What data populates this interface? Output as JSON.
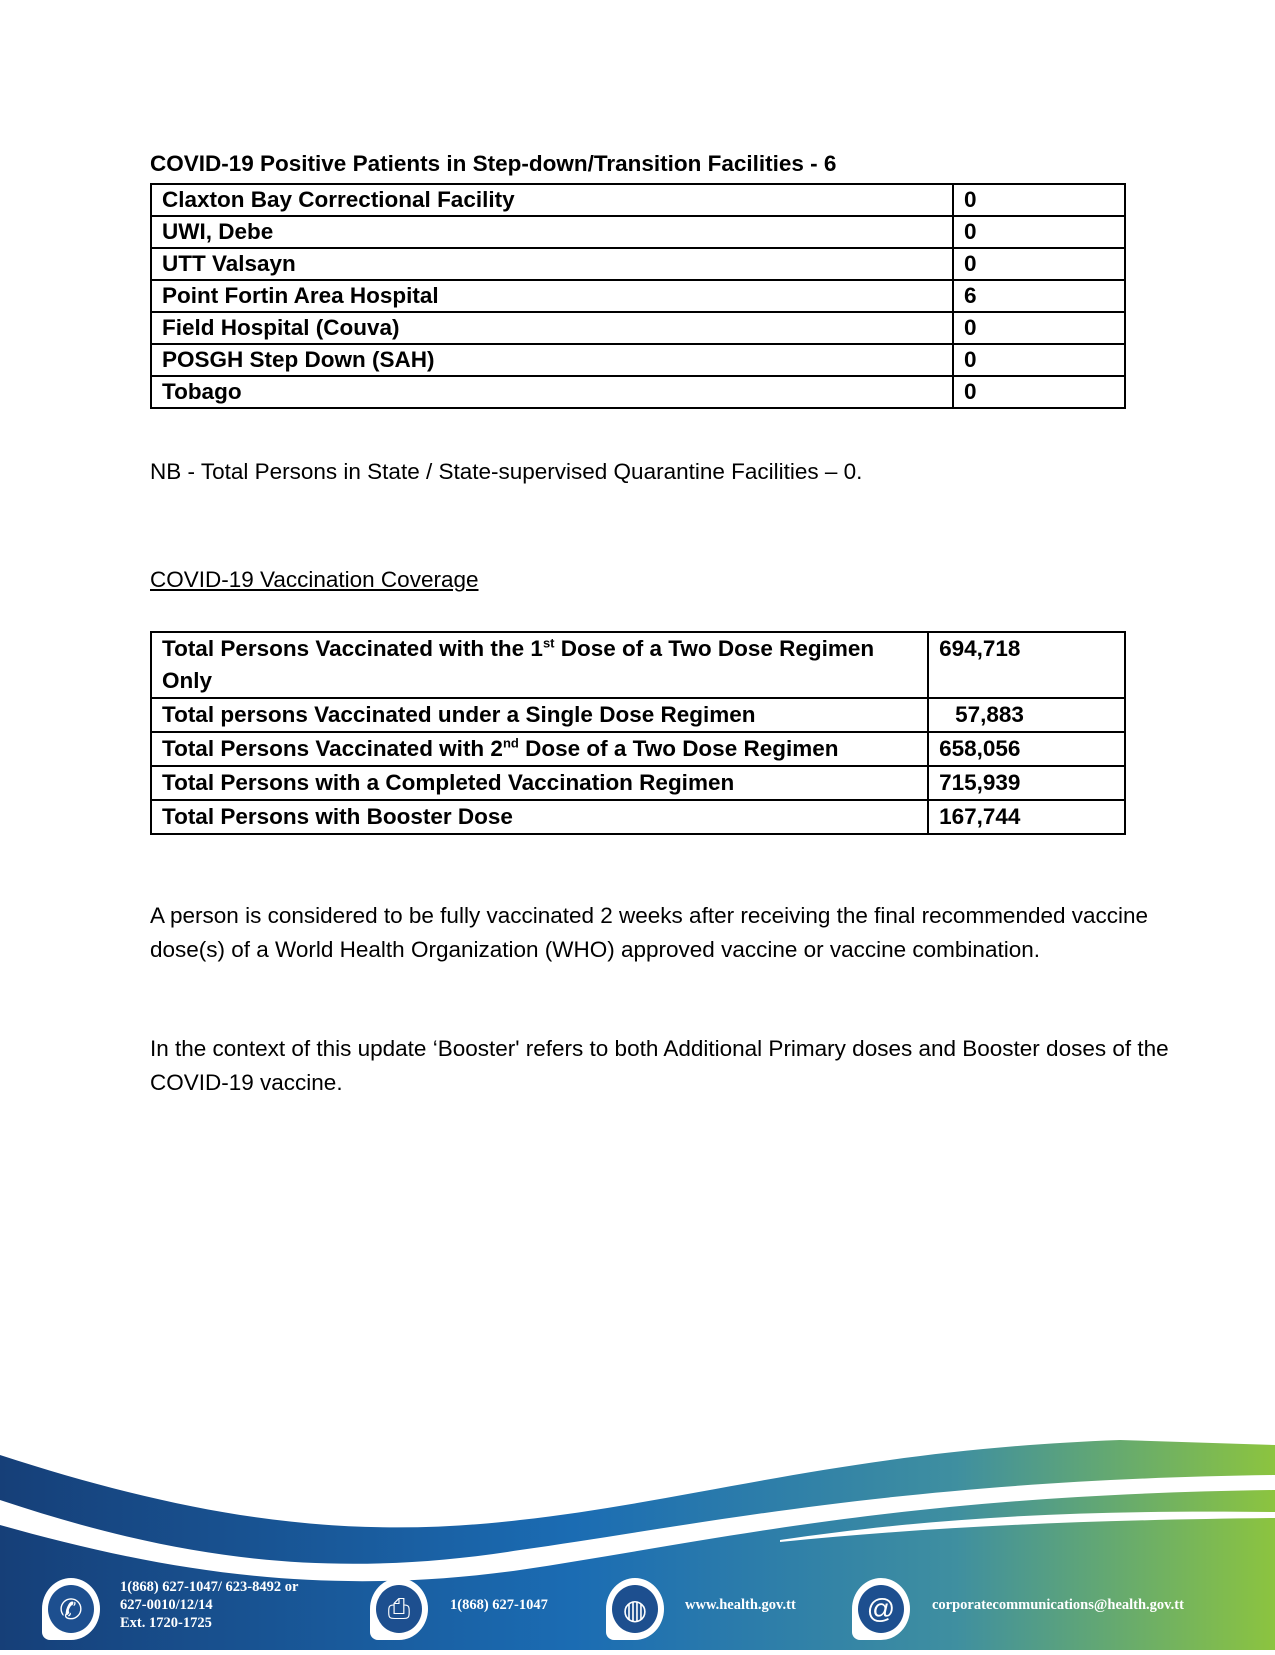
{
  "stepdown": {
    "title": "COVID-19 Positive Patients in Step-down/Transition Facilities - 6",
    "rows": [
      {
        "facility": "Claxton Bay Correctional Facility",
        "count": "0"
      },
      {
        "facility": "UWI, Debe",
        "count": "0"
      },
      {
        "facility": "UTT Valsayn",
        "count": "0"
      },
      {
        "facility": "Point Fortin Area Hospital",
        "count": "6"
      },
      {
        "facility": "Field Hospital (Couva)",
        "count": "0"
      },
      {
        "facility": "POSGH Step Down (SAH)",
        "count": "0"
      },
      {
        "facility": "Tobago",
        "count": "0"
      }
    ]
  },
  "nb_note": "NB - Total Persons in State / State-supervised Quarantine Facilities – 0.",
  "vaccination": {
    "heading": "COVID-19 Vaccination Coverage",
    "rows": [
      {
        "label_pre": "Total Persons Vaccinated with the 1",
        "sup": "st",
        "label_post": " Dose of a Two Dose Regimen Only",
        "value": "694,718"
      },
      {
        "label_pre": "Total persons Vaccinated under a Single Dose Regimen",
        "sup": "",
        "label_post": "",
        "value": "57,883"
      },
      {
        "label_pre": "Total Persons Vaccinated with 2",
        "sup": "nd",
        "label_post": " Dose of a Two Dose Regimen",
        "value": "658,056"
      },
      {
        "label_pre": "Total Persons with a Completed Vaccination Regimen",
        "sup": "",
        "label_post": "",
        "value": "715,939"
      },
      {
        "label_pre": "Total Persons with Booster Dose",
        "sup": "",
        "label_post": "",
        "value": "167,744"
      }
    ]
  },
  "paragraphs": [
    "A person is considered to be fully vaccinated 2 weeks after receiving the final recommended vaccine dose(s) of a  World Health Organization (WHO) approved vaccine or vaccine combination.",
    "In the context of this update ‘Booster' refers to both Additional Primary doses and Booster doses of the COVID-19 vaccine."
  ],
  "footer": {
    "phone": [
      "1(868) 627-1047/ 623-8492 or",
      "627-0010/12/14",
      "Ext. 1720-1725"
    ],
    "fax": "1(868) 627-1047",
    "website": "www.health.gov.tt",
    "email": "corporatecommunications@health.gov.tt",
    "colors": {
      "navy": "#163f78",
      "blue": "#1b6cb3",
      "green": "#8cc43f"
    },
    "icons": [
      "phone-icon",
      "fax-icon",
      "globe-icon",
      "at-icon"
    ]
  }
}
